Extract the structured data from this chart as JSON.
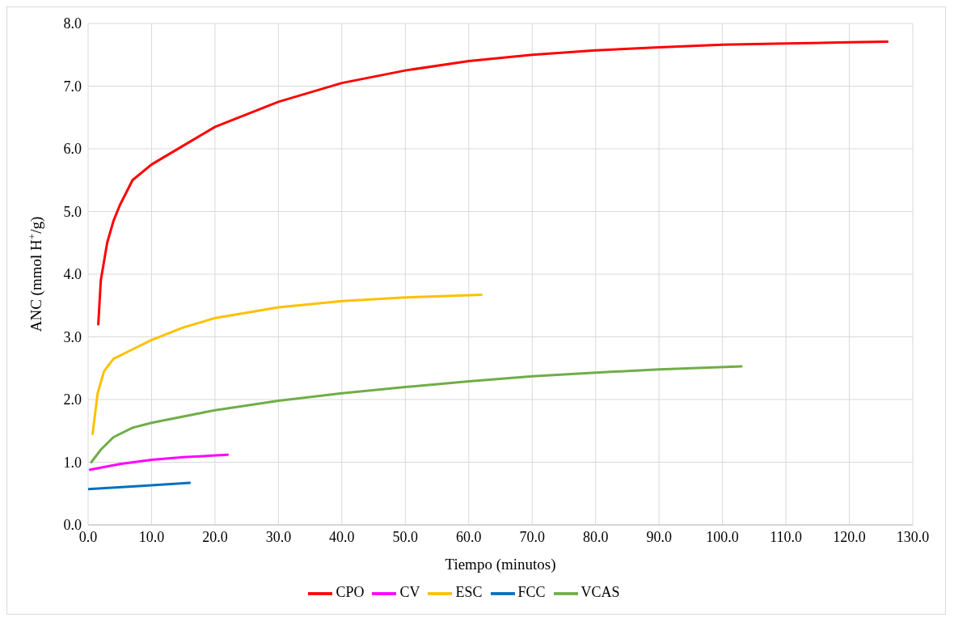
{
  "chart_data": {
    "type": "line",
    "xlabel": "Tiempo (minutos)",
    "ylabel": "ANC (mmol H$^{+}$/g)",
    "xlim": [
      0,
      130
    ],
    "xticks": [
      {
        "value": 0,
        "label": "0.0"
      },
      {
        "value": 10,
        "label": "10.0"
      },
      {
        "value": 20,
        "label": "20.0"
      },
      {
        "value": 30,
        "label": "30.0"
      },
      {
        "value": 40,
        "label": "40.0"
      },
      {
        "value": 50,
        "label": "50.0"
      },
      {
        "value": 60,
        "label": "60.0"
      },
      {
        "value": 70,
        "label": "70.0"
      },
      {
        "value": 80,
        "label": "80.0"
      },
      {
        "value": 90,
        "label": "90.0"
      },
      {
        "value": 100,
        "label": "100.0"
      },
      {
        "value": 110,
        "label": "110.0"
      },
      {
        "value": 120,
        "label": "120.0"
      },
      {
        "value": 130,
        "label": "130.0"
      }
    ],
    "ylim": [
      0,
      8
    ],
    "yticks": [
      {
        "value": 0,
        "label": "0.0"
      },
      {
        "value": 1,
        "label": "1.0"
      },
      {
        "value": 2,
        "label": "2.0"
      },
      {
        "value": 3,
        "label": "3.0"
      },
      {
        "value": 4,
        "label": "4.0"
      },
      {
        "value": 5,
        "label": "5.0"
      },
      {
        "value": 6,
        "label": "6.0"
      },
      {
        "value": 7,
        "label": "7.0"
      },
      {
        "value": 8,
        "label": "8.0"
      }
    ],
    "grid": true,
    "legend": "bottom",
    "marker": "none",
    "line_style": "solid",
    "series": [
      {
        "name": "CPO",
        "color": "#ff0000",
        "x": [
          1.6,
          2,
          3,
          4,
          5,
          7,
          10,
          15,
          20,
          30,
          40,
          50,
          60,
          70,
          80,
          90,
          100,
          110,
          120,
          126
        ],
        "values": [
          3.2,
          3.9,
          4.5,
          4.85,
          5.1,
          5.5,
          5.75,
          6.05,
          6.35,
          6.75,
          7.05,
          7.25,
          7.4,
          7.5,
          7.57,
          7.62,
          7.66,
          7.68,
          7.7,
          7.71
        ]
      },
      {
        "name": "ESC",
        "color": "#ffc000",
        "x": [
          0.7,
          1.5,
          2.5,
          4,
          7,
          10,
          15,
          20,
          30,
          40,
          50,
          62
        ],
        "values": [
          1.45,
          2.1,
          2.45,
          2.65,
          2.8,
          2.95,
          3.15,
          3.3,
          3.47,
          3.57,
          3.63,
          3.67
        ]
      },
      {
        "name": "VCAS",
        "color": "#70ad47",
        "x": [
          0.5,
          2,
          4,
          7,
          10,
          20,
          30,
          40,
          50,
          60,
          70,
          80,
          90,
          103
        ],
        "values": [
          1.0,
          1.2,
          1.4,
          1.55,
          1.63,
          1.83,
          1.98,
          2.1,
          2.2,
          2.29,
          2.37,
          2.43,
          2.48,
          2.53
        ]
      },
      {
        "name": "CV",
        "color": "#ff00ff",
        "x": [
          0.3,
          5,
          10,
          15,
          22
        ],
        "values": [
          0.88,
          0.97,
          1.04,
          1.08,
          1.12
        ]
      },
      {
        "name": "FCC",
        "color": "#0070c0",
        "x": [
          0,
          8,
          16
        ],
        "values": [
          0.57,
          0.62,
          0.67
        ]
      }
    ]
  }
}
